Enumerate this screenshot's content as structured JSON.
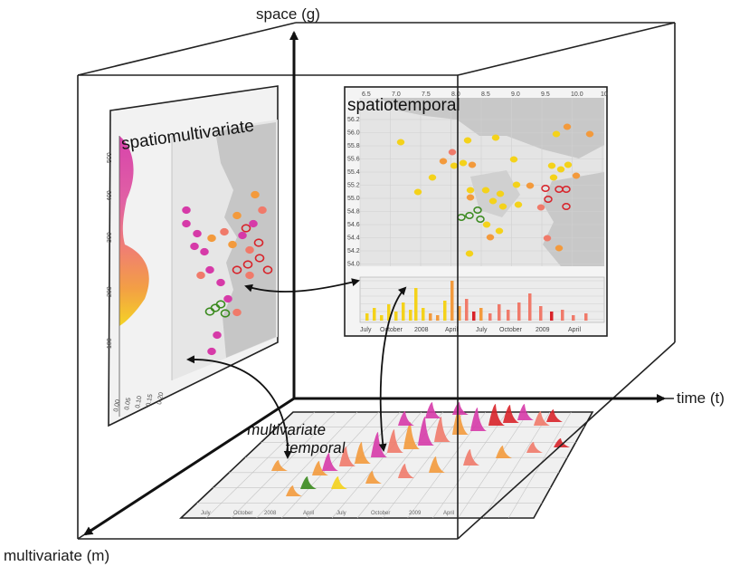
{
  "axes": {
    "space": "space (g)",
    "time": "time (t)",
    "multivariate": "multivariate (m)"
  },
  "panels": {
    "spatiomultivariate": {
      "title": "spatiomultivariate"
    },
    "spatiotemporal": {
      "title": "spatiotemporal",
      "lat_ticks": [
        "56.2",
        "56.0",
        "55.8",
        "55.6",
        "55.4",
        "55.2",
        "55.0",
        "54.8",
        "54.6",
        "54.4",
        "54.2",
        "54.0"
      ],
      "lon_ticks": [
        "6.5",
        "7.0",
        "7.5",
        "8.0",
        "8.5",
        "9.0",
        "9.5",
        "10.0",
        "10"
      ],
      "time_ticks": [
        "July",
        "October",
        "2008",
        "April",
        "July",
        "October",
        "2009",
        "April"
      ]
    },
    "multivariate_temporal": {
      "title_line1": "multivariate",
      "title_line2": "temporal",
      "time_ticks": [
        "July",
        "October",
        "2008",
        "April",
        "July",
        "October",
        "2009",
        "April"
      ]
    }
  },
  "colors": {
    "yellow": "#f4d21a",
    "orange": "#f39a3c",
    "salmon": "#f07a6a",
    "red": "#d8232a",
    "magenta": "#d63aa8",
    "green": "#3a8a1e",
    "land": "#c9c9c9",
    "sea": "#e4e4e4"
  }
}
